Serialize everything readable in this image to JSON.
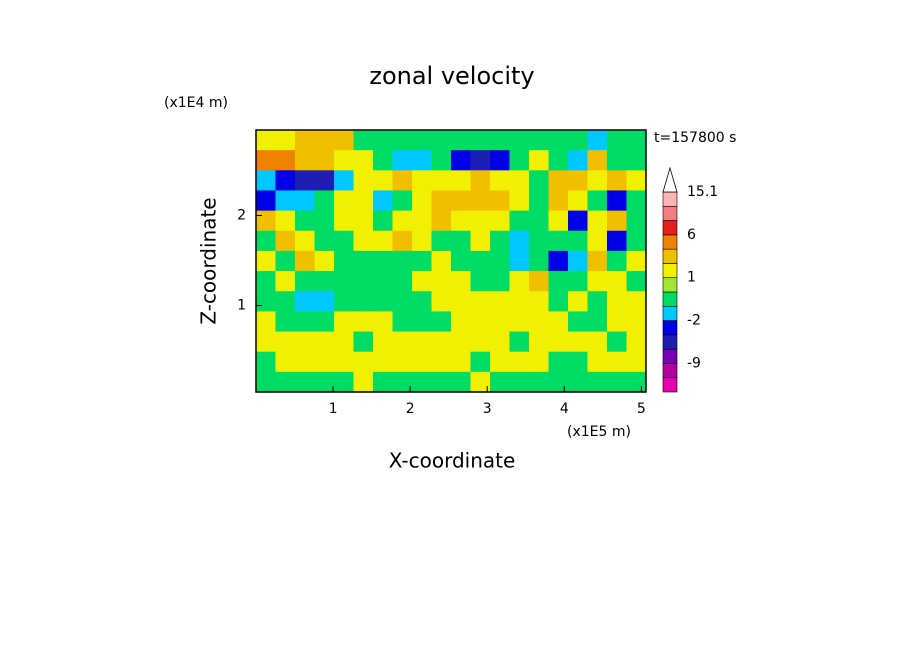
{
  "chart_data": {
    "type": "contour",
    "title": "zonal velocity",
    "x_label": "X-coordinate",
    "y_label": "Z-coordinate",
    "x_unit": "(x1E5 m)",
    "y_unit": "(x1E4 m)",
    "time_label": "t=157800 s",
    "xlim": [
      0,
      5.06
    ],
    "ylim": [
      0.04,
      2.95
    ],
    "xticks": [
      1,
      2,
      3,
      4,
      5
    ],
    "yticks": [
      1,
      2
    ],
    "field": {
      "values": [
        [
          1.5,
          1.5,
          3,
          3,
          3,
          -0.5,
          -0.5,
          -0.5,
          -0.5,
          -0.5,
          -0.5,
          -0.5,
          -0.5,
          -0.5,
          -0.5,
          -0.5,
          -0.5,
          -1.5,
          -0.5,
          -0.5
        ],
        [
          5,
          5,
          3,
          3,
          1.5,
          1.5,
          -0.5,
          -1.5,
          -1.5,
          -0.5,
          -3,
          -5,
          -3,
          -0.5,
          1.5,
          -0.5,
          -1.5,
          3,
          -0.5,
          -0.5
        ],
        [
          -1.5,
          -3,
          -5,
          -5,
          -1.5,
          1.5,
          1.5,
          3,
          1.5,
          1.5,
          1.5,
          3,
          1.5,
          1.5,
          -0.5,
          3,
          3,
          1.5,
          3,
          1.5
        ],
        [
          -3,
          -1.5,
          -1.5,
          -0.5,
          1.5,
          1.5,
          -1.5,
          -0.5,
          1.5,
          3,
          3,
          3,
          3,
          1.5,
          -0.5,
          3,
          1.5,
          -0.5,
          -3,
          -0.5
        ],
        [
          3,
          1.5,
          -0.5,
          -0.5,
          1.5,
          1.5,
          -0.5,
          1.5,
          1.5,
          3,
          1.5,
          1.5,
          1.5,
          -0.5,
          -0.5,
          1.5,
          -3,
          1.5,
          3,
          -0.5
        ],
        [
          -0.5,
          3,
          1.5,
          -0.5,
          -0.5,
          1.5,
          1.5,
          3,
          1.5,
          -0.5,
          -0.5,
          1.5,
          -0.5,
          -1.5,
          -0.5,
          -0.5,
          -0.5,
          1.5,
          -3,
          -0.5
        ],
        [
          1.5,
          -0.5,
          3,
          1.5,
          -0.5,
          -0.5,
          -0.5,
          -0.5,
          -0.5,
          1.5,
          -0.5,
          -0.5,
          -0.5,
          -1.5,
          -0.5,
          -3,
          -1.5,
          3,
          -0.5,
          1.5
        ],
        [
          -0.5,
          1.5,
          -0.5,
          -0.5,
          -0.5,
          -0.5,
          -0.5,
          -0.5,
          1.5,
          1.5,
          1.5,
          -0.5,
          -0.5,
          1.5,
          3,
          -0.5,
          -0.5,
          1.5,
          1.5,
          -0.5
        ],
        [
          -0.5,
          -0.5,
          -1.5,
          -1.5,
          -0.5,
          -0.5,
          -0.5,
          -0.5,
          -0.5,
          1.5,
          1.5,
          1.5,
          1.5,
          1.5,
          1.5,
          -0.5,
          1.5,
          -0.5,
          1.5,
          1.5
        ],
        [
          1.5,
          -0.5,
          -0.5,
          -0.5,
          1.5,
          1.5,
          1.5,
          -0.5,
          -0.5,
          -0.5,
          1.5,
          1.5,
          1.5,
          1.5,
          1.5,
          1.5,
          -0.5,
          -0.5,
          1.5,
          1.5
        ],
        [
          1.5,
          1.5,
          1.5,
          1.5,
          1.5,
          -0.5,
          1.5,
          1.5,
          1.5,
          1.5,
          1.5,
          1.5,
          1.5,
          -0.5,
          1.5,
          1.5,
          1.5,
          1.5,
          -0.5,
          1.5
        ],
        [
          -0.5,
          1.5,
          1.5,
          1.5,
          1.5,
          1.5,
          1.5,
          1.5,
          1.5,
          1.5,
          1.5,
          -0.5,
          1.5,
          1.5,
          1.5,
          -0.5,
          -0.5,
          1.5,
          1.5,
          1.5
        ],
        [
          -0.5,
          -0.5,
          -0.5,
          -0.5,
          -0.5,
          1.5,
          -0.5,
          -0.5,
          -0.5,
          -0.5,
          -0.5,
          1.5,
          -0.5,
          -0.5,
          -0.5,
          -0.5,
          -0.5,
          -0.5,
          -0.5,
          -0.5
        ]
      ]
    },
    "colorbar": {
      "levels": [
        -15,
        -12,
        -9,
        -6,
        -4,
        -2,
        -1,
        0,
        1,
        2,
        4,
        6,
        9,
        12,
        15.1
      ],
      "colors": [
        "#e600b4",
        "#b400a0",
        "#7800b4",
        "#1e1eb4",
        "#0000e6",
        "#00c8ff",
        "#00dc64",
        "#a0e632",
        "#f0f000",
        "#f0c000",
        "#f08000",
        "#e61e1e",
        "#f08080",
        "#fab4b4"
      ],
      "labels": [
        15.1,
        6,
        1,
        -2,
        -9
      ]
    }
  }
}
